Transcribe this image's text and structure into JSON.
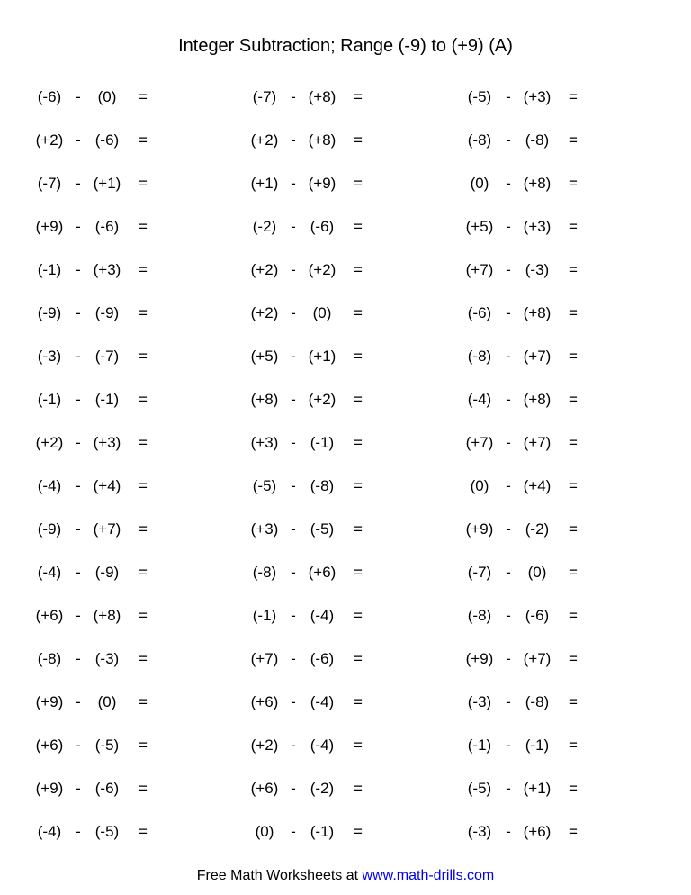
{
  "title": "Integer Subtraction; Range (-9) to (+9) (A)",
  "footer_text": "Free Math Worksheets at ",
  "footer_link": "www.math-drills.com",
  "minus": "-",
  "equals": "=",
  "rows": [
    [
      [
        "(-6)",
        "(0)"
      ],
      [
        "(-7)",
        "(+8)"
      ],
      [
        "(-5)",
        "(+3)"
      ]
    ],
    [
      [
        "(+2)",
        "(-6)"
      ],
      [
        "(+2)",
        "(+8)"
      ],
      [
        "(-8)",
        "(-8)"
      ]
    ],
    [
      [
        "(-7)",
        "(+1)"
      ],
      [
        "(+1)",
        "(+9)"
      ],
      [
        "(0)",
        "(+8)"
      ]
    ],
    [
      [
        "(+9)",
        "(-6)"
      ],
      [
        "(-2)",
        "(-6)"
      ],
      [
        "(+5)",
        "(+3)"
      ]
    ],
    [
      [
        "(-1)",
        "(+3)"
      ],
      [
        "(+2)",
        "(+2)"
      ],
      [
        "(+7)",
        "(-3)"
      ]
    ],
    [
      [
        "(-9)",
        "(-9)"
      ],
      [
        "(+2)",
        "(0)"
      ],
      [
        "(-6)",
        "(+8)"
      ]
    ],
    [
      [
        "(-3)",
        "(-7)"
      ],
      [
        "(+5)",
        "(+1)"
      ],
      [
        "(-8)",
        "(+7)"
      ]
    ],
    [
      [
        "(-1)",
        "(-1)"
      ],
      [
        "(+8)",
        "(+2)"
      ],
      [
        "(-4)",
        "(+8)"
      ]
    ],
    [
      [
        "(+2)",
        "(+3)"
      ],
      [
        "(+3)",
        "(-1)"
      ],
      [
        "(+7)",
        "(+7)"
      ]
    ],
    [
      [
        "(-4)",
        "(+4)"
      ],
      [
        "(-5)",
        "(-8)"
      ],
      [
        "(0)",
        "(+4)"
      ]
    ],
    [
      [
        "(-9)",
        "(+7)"
      ],
      [
        "(+3)",
        "(-5)"
      ],
      [
        "(+9)",
        "(-2)"
      ]
    ],
    [
      [
        "(-4)",
        "(-9)"
      ],
      [
        "(-8)",
        "(+6)"
      ],
      [
        "(-7)",
        "(0)"
      ]
    ],
    [
      [
        "(+6)",
        "(+8)"
      ],
      [
        "(-1)",
        "(-4)"
      ],
      [
        "(-8)",
        "(-6)"
      ]
    ],
    [
      [
        "(-8)",
        "(-3)"
      ],
      [
        "(+7)",
        "(-6)"
      ],
      [
        "(+9)",
        "(+7)"
      ]
    ],
    [
      [
        "(+9)",
        "(0)"
      ],
      [
        "(+6)",
        "(-4)"
      ],
      [
        "(-3)",
        "(-8)"
      ]
    ],
    [
      [
        "(+6)",
        "(-5)"
      ],
      [
        "(+2)",
        "(-4)"
      ],
      [
        "(-1)",
        "(-1)"
      ]
    ],
    [
      [
        "(+9)",
        "(-6)"
      ],
      [
        "(+6)",
        "(-2)"
      ],
      [
        "(-5)",
        "(+1)"
      ]
    ],
    [
      [
        "(-4)",
        "(-5)"
      ],
      [
        "(0)",
        "(-1)"
      ],
      [
        "(-3)",
        "(+6)"
      ]
    ]
  ]
}
